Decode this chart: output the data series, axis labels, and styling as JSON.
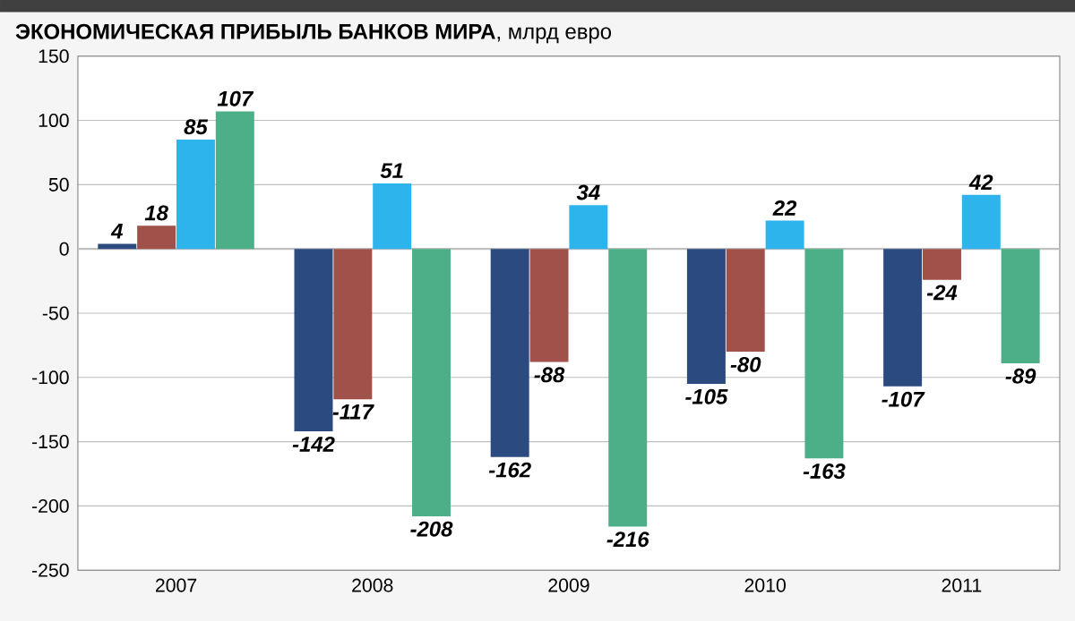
{
  "chart_data": {
    "type": "bar",
    "title": "**ЭКОНОМИЧЕСКАЯ ПРИБЫЛЬ БАНКОВ МИРА**, млрд евро",
    "categories": [
      "2007",
      "2008",
      "2009",
      "2010",
      "2011"
    ],
    "series": [
      {
        "color": "#2b4a80",
        "values": [
          4,
          -142,
          -162,
          -105,
          -107
        ]
      },
      {
        "color": "#a0524a",
        "values": [
          18,
          -117,
          -88,
          -80,
          -24
        ]
      },
      {
        "color": "#2eb4ec",
        "values": [
          85,
          51,
          34,
          22,
          42
        ]
      },
      {
        "color": "#4caf88",
        "values": [
          107,
          -208,
          -216,
          -163,
          -89
        ]
      }
    ],
    "ylim": [
      -250,
      150
    ],
    "yticks": [
      -250,
      -200,
      -150,
      -100,
      -50,
      0,
      50,
      100,
      150
    ],
    "grid": "y",
    "data_labels": true
  }
}
